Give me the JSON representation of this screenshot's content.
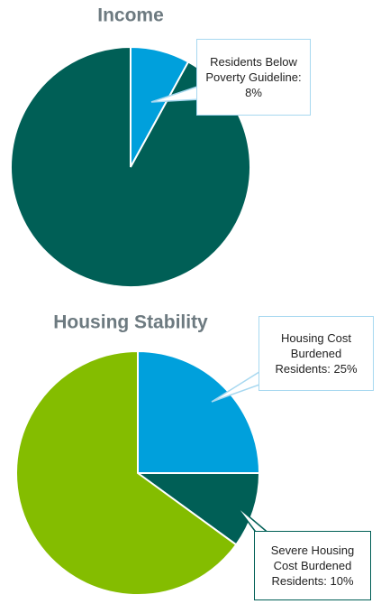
{
  "chart_data": [
    {
      "type": "pie",
      "title": "Income",
      "categories": [
        null,
        null
      ],
      "values": [
        8,
        92
      ],
      "value_labels": [
        "Residents Below Poverty Guideline: 8%",
        null
      ],
      "colors": [
        "#00a0dc",
        "#005f56"
      ]
    },
    {
      "type": "pie",
      "title": "Housing Stability",
      "categories": [
        null,
        null,
        null
      ],
      "values": [
        25,
        10,
        65
      ],
      "value_labels": [
        "Housing Cost Burdened Residents: 25%",
        "Severe Housing Cost Burdened Residents: 10%",
        null
      ],
      "colors": [
        "#00a0dc",
        "#005f56",
        "#84bd00"
      ]
    }
  ]
}
